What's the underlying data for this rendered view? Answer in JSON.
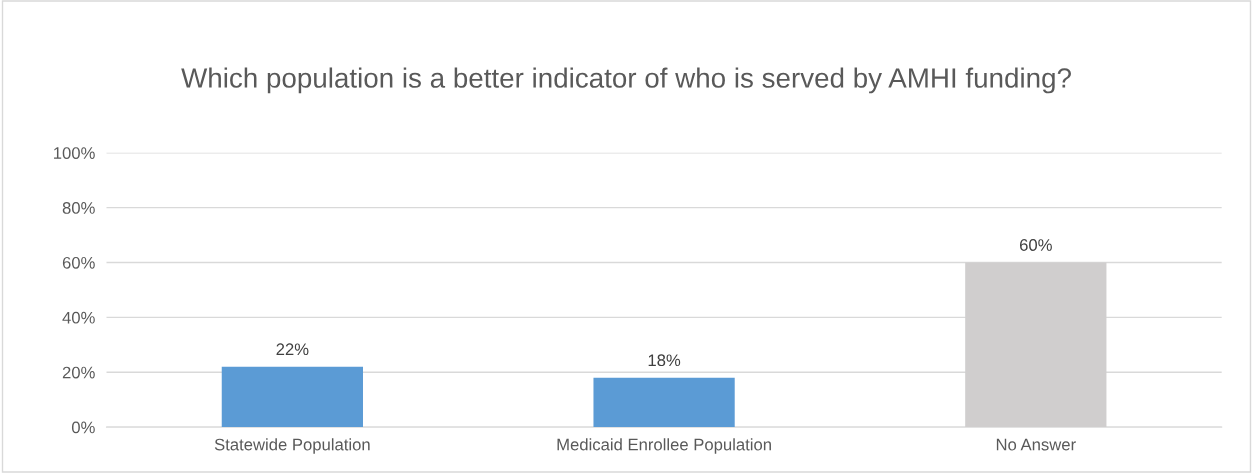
{
  "chart_data": {
    "type": "bar",
    "title": "Which population is a better indicator of who is served by AMHI funding?",
    "categories": [
      "Statewide Population",
      "Medicaid Enrollee Population",
      "No Answer"
    ],
    "values": [
      22,
      18,
      60
    ],
    "colors": [
      "#5b9bd5",
      "#5b9bd5",
      "#d0cece"
    ],
    "value_labels": [
      "22%",
      "18%",
      "60%"
    ],
    "ylim": [
      0,
      100
    ],
    "yticks": [
      {
        "value": 0,
        "label": "0%"
      },
      {
        "value": 20,
        "label": "20%"
      },
      {
        "value": 40,
        "label": "40%"
      },
      {
        "value": 60,
        "label": "60%"
      },
      {
        "value": 80,
        "label": "80%"
      },
      {
        "value": 100,
        "label": "100%"
      }
    ],
    "grid": "y"
  }
}
